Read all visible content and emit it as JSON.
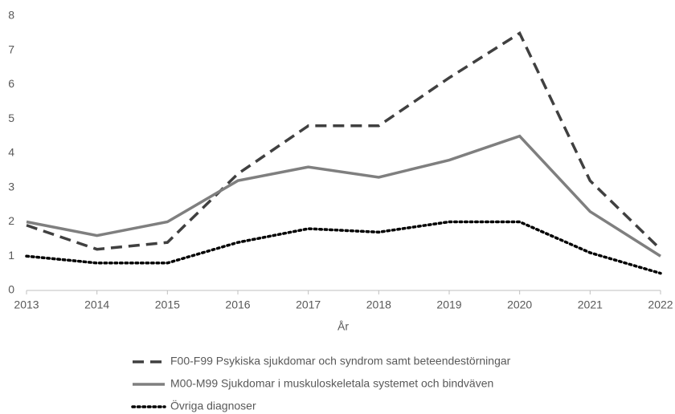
{
  "chart_data": {
    "type": "line",
    "x": [
      2013,
      2014,
      2015,
      2016,
      2017,
      2018,
      2019,
      2020,
      2021,
      2022
    ],
    "x_label": "År",
    "xlim": [
      2013,
      2022
    ],
    "xticks": [
      2013,
      2014,
      2015,
      2016,
      2017,
      2018,
      2019,
      2020,
      2021,
      2022
    ],
    "ylim": [
      0,
      8
    ],
    "yticks": [
      0,
      1,
      2,
      3,
      4,
      5,
      6,
      7,
      8
    ],
    "grid": false,
    "legend": "bottom",
    "series": [
      {
        "name": "F00-F99 Psykiska sjukdomar och syndrom samt beteendestörningar",
        "color": "#404040",
        "style": "dashed",
        "values": [
          1.9,
          1.2,
          1.4,
          3.4,
          4.8,
          4.8,
          6.2,
          7.5,
          3.2,
          1.2
        ]
      },
      {
        "name": "M00-M99 Sjukdomar i muskuloskeletala systemet och bindväven",
        "color": "#7f7f7f",
        "style": "solid",
        "values": [
          2.0,
          1.6,
          2.0,
          3.2,
          3.6,
          3.3,
          3.8,
          4.5,
          2.3,
          1.0
        ]
      },
      {
        "name": "Övriga diagnoser",
        "color": "#000000",
        "style": "dotted",
        "values": [
          1.0,
          0.8,
          0.8,
          1.4,
          1.8,
          1.7,
          2.0,
          2.0,
          1.1,
          0.5
        ]
      }
    ]
  }
}
